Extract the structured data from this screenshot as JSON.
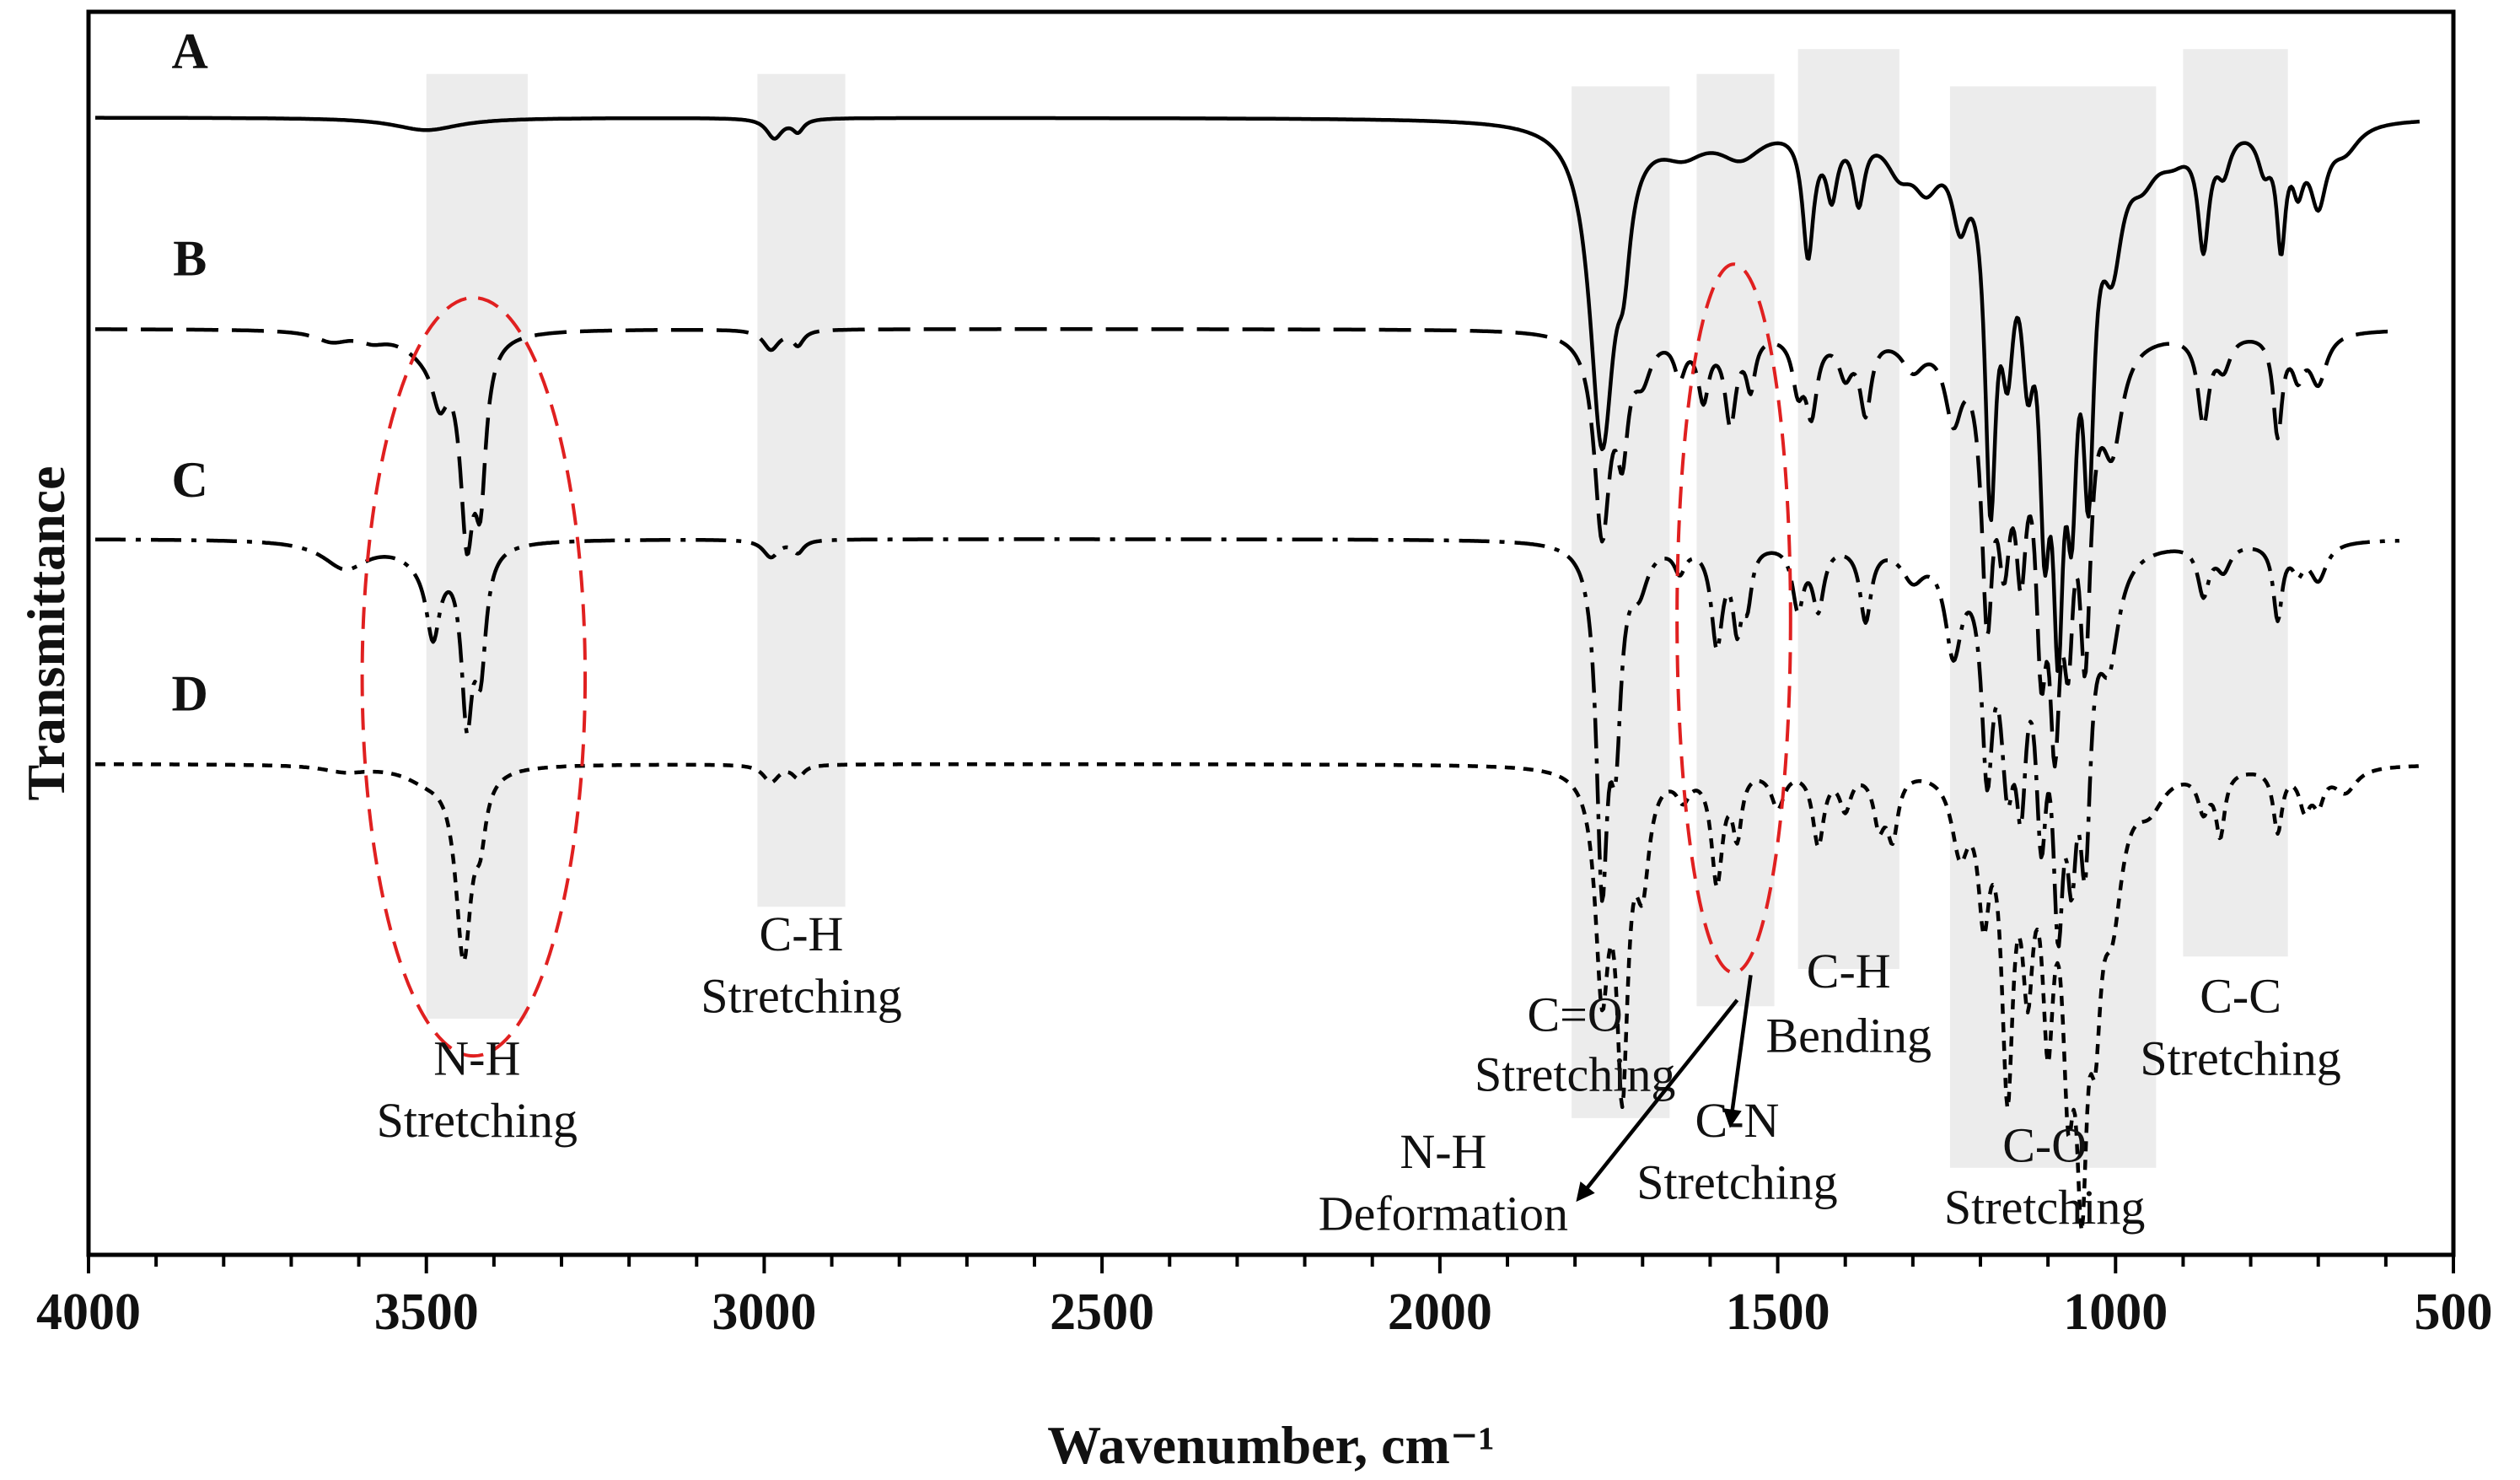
{
  "chart_data": {
    "type": "line",
    "title": "",
    "xlabel": "Wavenumber, cm⁻¹",
    "ylabel": "Transmittance",
    "xlim": [
      4000,
      500
    ],
    "x_reversed": true,
    "xticks": [
      4000,
      3500,
      3000,
      2500,
      2000,
      1500,
      1000,
      500
    ],
    "minor_tick_step": 100,
    "ylim": [
      0,
      100
    ],
    "grid": false,
    "colors": {
      "spectrum": "#000000",
      "band": "#ececec",
      "highlight": "#e02020",
      "axis": "#000000"
    },
    "bands": [
      {
        "from": 3500,
        "to": 3350,
        "y_top": 95,
        "y_bottom": 19
      },
      {
        "from": 3010,
        "to": 2880,
        "y_top": 95,
        "y_bottom": 28
      },
      {
        "from": 1805,
        "to": 1660,
        "y_top": 94,
        "y_bottom": 11
      },
      {
        "from": 1620,
        "to": 1505,
        "y_top": 95,
        "y_bottom": 20
      },
      {
        "from": 1470,
        "to": 1320,
        "y_top": 97,
        "y_bottom": 23
      },
      {
        "from": 1245,
        "to": 940,
        "y_top": 94,
        "y_bottom": 7
      },
      {
        "from": 900,
        "to": 745,
        "y_top": 97,
        "y_bottom": 24
      }
    ],
    "series": [
      {
        "name": "A",
        "label_at": [
          3850,
          95.5
        ],
        "dash": "none",
        "baseline": 91.5,
        "x_start": 3990,
        "x_end": 550,
        "peaks": [
          [
            3500,
            1.0,
            60
          ],
          [
            2985,
            1.6,
            14
          ],
          [
            2950,
            1.0,
            10
          ],
          [
            1760,
            25.5,
            22
          ],
          [
            1728,
            6.5,
            12
          ],
          [
            1640,
            2.0,
            40
          ],
          [
            1555,
            2.5,
            40
          ],
          [
            1455,
            10,
            10
          ],
          [
            1420,
            5,
            10
          ],
          [
            1380,
            5.5,
            10
          ],
          [
            1320,
            3,
            25
          ],
          [
            1280,
            4,
            25
          ],
          [
            1230,
            6,
            15
          ],
          [
            1185,
            27,
            10
          ],
          [
            1160,
            14,
            12
          ],
          [
            1130,
            14,
            12
          ],
          [
            1105,
            24,
            10
          ],
          [
            1085,
            32,
            10
          ],
          [
            1065,
            22,
            10
          ],
          [
            1040,
            24,
            10
          ],
          [
            1005,
            9,
            18
          ],
          [
            960,
            3,
            25
          ],
          [
            915,
            2,
            30
          ],
          [
            870,
            9,
            10
          ],
          [
            840,
            3,
            12
          ],
          [
            780,
            3,
            12
          ],
          [
            755,
            9,
            8
          ],
          [
            730,
            4,
            10
          ],
          [
            700,
            6,
            15
          ],
          [
            660,
            2,
            25
          ]
        ]
      },
      {
        "name": "B",
        "label_at": [
          3850,
          78.8
        ],
        "dash": "38 16",
        "baseline": 74.5,
        "x_start": 3990,
        "x_end": 580,
        "peaks": [
          [
            3640,
            0.8,
            30
          ],
          [
            3580,
            0.6,
            25
          ],
          [
            3500,
            1.5,
            40
          ],
          [
            3480,
            4,
            14
          ],
          [
            3440,
            15,
            12
          ],
          [
            3420,
            11,
            10
          ],
          [
            2990,
            1.6,
            14
          ],
          [
            2950,
            1.2,
            10
          ],
          [
            1760,
            16,
            14
          ],
          [
            1730,
            8,
            10
          ],
          [
            1700,
            3,
            15
          ],
          [
            1645,
            3,
            10
          ],
          [
            1610,
            5,
            10
          ],
          [
            1570,
            7,
            10
          ],
          [
            1540,
            4,
            8
          ],
          [
            1470,
            4,
            10
          ],
          [
            1450,
            6,
            10
          ],
          [
            1400,
            3,
            12
          ],
          [
            1370,
            6,
            10
          ],
          [
            1300,
            2.5,
            20
          ],
          [
            1240,
            6,
            15
          ],
          [
            1190,
            20,
            10
          ],
          [
            1165,
            14,
            12
          ],
          [
            1140,
            14,
            10
          ],
          [
            1110,
            20,
            10
          ],
          [
            1090,
            25,
            10
          ],
          [
            1070,
            18,
            10
          ],
          [
            1045,
            22,
            10
          ],
          [
            1005,
            8,
            18
          ],
          [
            870,
            7,
            10
          ],
          [
            840,
            2.5,
            12
          ],
          [
            760,
            8,
            8
          ],
          [
            730,
            3,
            10
          ],
          [
            700,
            4,
            15
          ]
        ]
      },
      {
        "name": "C",
        "label_at": [
          3850,
          61.0
        ],
        "dash": "36 12 6 12",
        "baseline": 57.6,
        "x_start": 3990,
        "x_end": 580,
        "peaks": [
          [
            3620,
            2.2,
            40
          ],
          [
            3500,
            1.5,
            40
          ],
          [
            3490,
            6,
            12
          ],
          [
            3440,
            13,
            10
          ],
          [
            3420,
            9,
            10
          ],
          [
            2990,
            1.4,
            14
          ],
          [
            2950,
            1.0,
            10
          ],
          [
            1760,
            26,
            10
          ],
          [
            1740,
            14,
            10
          ],
          [
            1705,
            3,
            15
          ],
          [
            1645,
            2,
            10
          ],
          [
            1590,
            8,
            10
          ],
          [
            1560,
            6,
            8
          ],
          [
            1545,
            4,
            8
          ],
          [
            1470,
            5,
            10
          ],
          [
            1440,
            5,
            10
          ],
          [
            1370,
            6,
            10
          ],
          [
            1300,
            2.5,
            20
          ],
          [
            1240,
            8,
            15
          ],
          [
            1190,
            16,
            10
          ],
          [
            1160,
            15,
            12
          ],
          [
            1140,
            15,
            10
          ],
          [
            1110,
            18,
            10
          ],
          [
            1085,
            24,
            10
          ],
          [
            1065,
            18,
            10
          ],
          [
            1045,
            20,
            10
          ],
          [
            1010,
            8,
            18
          ],
          [
            870,
            4,
            10
          ],
          [
            840,
            2,
            12
          ],
          [
            760,
            6,
            8
          ],
          [
            730,
            2,
            10
          ],
          [
            700,
            3,
            15
          ]
        ]
      },
      {
        "name": "D",
        "label_at": [
          3850,
          43.8
        ],
        "dash": "12 10",
        "baseline": 39.5,
        "x_start": 3990,
        "x_end": 550,
        "peaks": [
          [
            3620,
            0.5,
            40
          ],
          [
            3500,
            1.0,
            40
          ],
          [
            3445,
            15,
            14
          ],
          [
            3420,
            4,
            10
          ],
          [
            2990,
            1.4,
            14
          ],
          [
            2950,
            1.0,
            10
          ],
          [
            1760,
            17,
            12
          ],
          [
            1730,
            24,
            10
          ],
          [
            1700,
            8,
            12
          ],
          [
            1640,
            2,
            12
          ],
          [
            1590,
            9,
            10
          ],
          [
            1560,
            5,
            8
          ],
          [
            1500,
            3,
            12
          ],
          [
            1440,
            6,
            10
          ],
          [
            1400,
            3,
            10
          ],
          [
            1350,
            4,
            10
          ],
          [
            1330,
            5,
            10
          ],
          [
            1230,
            6,
            15
          ],
          [
            1195,
            10,
            10
          ],
          [
            1160,
            24,
            10
          ],
          [
            1130,
            14,
            10
          ],
          [
            1100,
            18,
            10
          ],
          [
            1070,
            20,
            10
          ],
          [
            1050,
            28,
            10
          ],
          [
            1030,
            14,
            10
          ],
          [
            1005,
            10,
            18
          ],
          [
            950,
            2.5,
            25
          ],
          [
            870,
            3,
            10
          ],
          [
            845,
            5,
            8
          ],
          [
            760,
            5,
            8
          ],
          [
            720,
            3,
            10
          ],
          [
            700,
            2.5,
            10
          ],
          [
            660,
            2,
            20
          ]
        ]
      }
    ],
    "annotations": [
      {
        "lines": [
          "C-H",
          "Stretching"
        ],
        "x": 2945,
        "y": [
          24.5,
          19.5
        ]
      },
      {
        "lines": [
          "N-H",
          "Stretching"
        ],
        "x": 3425,
        "y": [
          14.5,
          9.5
        ]
      },
      {
        "lines": [
          "C=O",
          "Stretching"
        ],
        "x": 1800,
        "y": [
          18.0,
          13.2
        ]
      },
      {
        "lines": [
          "N-H",
          "Deformation"
        ],
        "x": 1995,
        "y": [
          7.0,
          2.0
        ]
      },
      {
        "lines": [
          "C-N",
          "Stretching"
        ],
        "x": 1560,
        "y": [
          9.5,
          4.5
        ]
      },
      {
        "lines": [
          "C-H",
          "Bending"
        ],
        "x": 1395,
        "y": [
          21.5,
          16.3
        ]
      },
      {
        "lines": [
          "C-O",
          "Stretching"
        ],
        "x": 1105,
        "y": [
          7.5,
          2.5
        ]
      },
      {
        "lines": [
          "C-C",
          "Stretching"
        ],
        "x": 815,
        "y": [
          19.5,
          14.5
        ]
      }
    ],
    "arrows": [
      {
        "from": [
          1560,
          20.5
        ],
        "to": [
          1795,
          4.5
        ]
      },
      {
        "from": [
          1540,
          22.5
        ],
        "to": [
          1570,
          10.5
        ]
      }
    ],
    "highlights": [
      {
        "cx": 3430,
        "cy": 46.5,
        "rx": 165,
        "ry": 30.5
      },
      {
        "cx": 1565,
        "cy": 51.2,
        "rx": 84,
        "ry": 28.5
      }
    ]
  }
}
